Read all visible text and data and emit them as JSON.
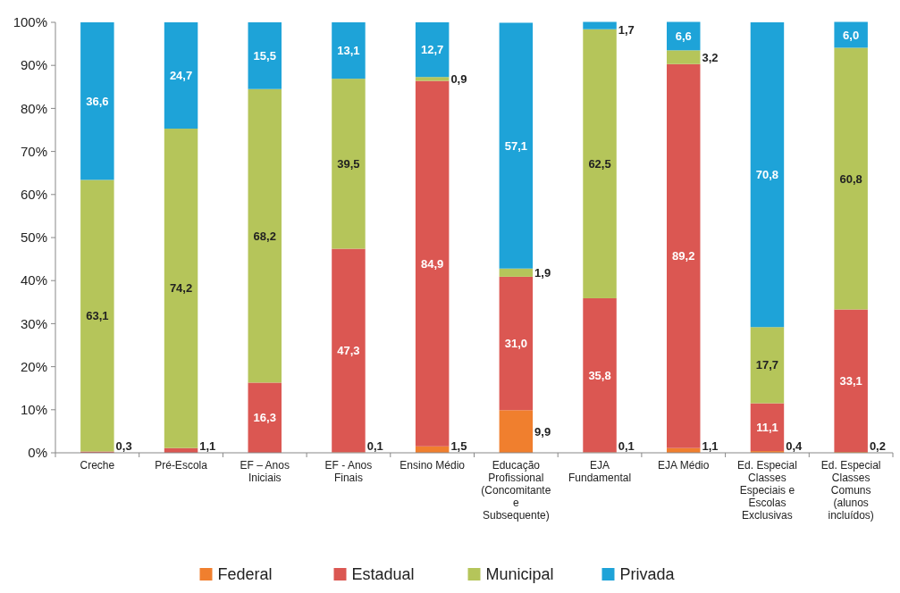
{
  "chart_data": {
    "type": "bar",
    "stacked": true,
    "categories": [
      "Creche",
      "Pré-Escola",
      "EF – Anos Iniciais",
      "EF - Anos Finais",
      "Ensino Médio",
      "Educação Profissional (Concomitante e Subsequente)",
      "EJA Fundamental",
      "EJA Médio",
      "Ed. Especial Classes Especiais e Escolas Exclusivas",
      "Ed. Especial Classes Comuns (alunos incluídos)"
    ],
    "series": [
      {
        "name": "Federal",
        "color": "#f07f2e",
        "values": [
          null,
          null,
          null,
          0.1,
          1.5,
          9.9,
          0.1,
          1.1,
          0.4,
          0.2
        ],
        "value_labels": [
          null,
          null,
          null,
          "0,1",
          "1,5",
          "9,9",
          "0,1",
          "1,1",
          "0,4",
          "0,2"
        ]
      },
      {
        "name": "Estadual",
        "color": "#db5752",
        "values": [
          0.3,
          1.1,
          16.3,
          47.3,
          84.9,
          31.0,
          35.8,
          89.2,
          11.1,
          33.1
        ],
        "value_labels": [
          "0,3",
          "1,1",
          "16,3",
          "47,3",
          "84,9",
          "31,0",
          "35,8",
          "89,2",
          "11,1",
          "33,1"
        ]
      },
      {
        "name": "Municipal",
        "color": "#b5c55a",
        "values": [
          63.1,
          74.2,
          68.2,
          39.5,
          0.9,
          1.9,
          62.5,
          3.2,
          17.7,
          60.8
        ],
        "value_labels": [
          "63,1",
          "74,2",
          "68,2",
          "39,5",
          "0,9",
          "1,9",
          "62,5",
          "3,2",
          "17,7",
          "60,8"
        ]
      },
      {
        "name": "Privada",
        "color": "#1ea3d8",
        "values": [
          36.6,
          24.7,
          15.5,
          13.1,
          12.7,
          57.1,
          1.7,
          6.6,
          70.8,
          6.0
        ],
        "value_labels": [
          "36,6",
          "24,7",
          "15,5",
          "13,1",
          "12,7",
          "57,1",
          "1,7",
          "6,6",
          "70,8",
          "6,0"
        ]
      }
    ],
    "ylim": [
      0,
      100
    ],
    "yticks": [
      {
        "value": 0,
        "label": "0%"
      },
      {
        "value": 10,
        "label": "10%"
      },
      {
        "value": 20,
        "label": "20%"
      },
      {
        "value": 30,
        "label": "30%"
      },
      {
        "value": 40,
        "label": "40%"
      },
      {
        "value": 50,
        "label": "50%"
      },
      {
        "value": 60,
        "label": "60%"
      },
      {
        "value": 70,
        "label": "70%"
      },
      {
        "value": 80,
        "label": "80%"
      },
      {
        "value": 90,
        "label": "90%"
      },
      {
        "value": 100,
        "label": "100%"
      }
    ],
    "legend": "bottom"
  }
}
